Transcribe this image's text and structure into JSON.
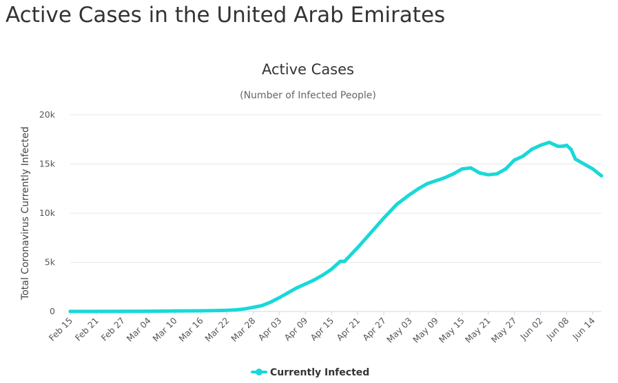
{
  "page_title": "Active Cases in the United Arab Emirates",
  "chart_data": {
    "type": "line",
    "title": "Active Cases",
    "subtitle": "(Number of Infected People)",
    "xlabel": "",
    "ylabel": "Total Coronavirus Currently Infected",
    "ylim": [
      0,
      20000
    ],
    "y_ticks": [
      0,
      5000,
      10000,
      15000,
      20000
    ],
    "y_tick_labels": [
      "0",
      "5k",
      "10k",
      "15k",
      "20k"
    ],
    "x_tick_labels": [
      "Feb 15",
      "Feb 21",
      "Feb 27",
      "Mar 04",
      "Mar 10",
      "Mar 16",
      "Mar 22",
      "Mar 28",
      "Apr 03",
      "Apr 09",
      "Apr 15",
      "Apr 21",
      "Apr 27",
      "May 03",
      "May 09",
      "May 15",
      "May 21",
      "May 27",
      "Jun 02",
      "Jun 08",
      "Jun 14"
    ],
    "grid": true,
    "legend_position": "bottom-center",
    "color": "#19d8d8",
    "series": [
      {
        "name": "Currently Infected",
        "x": [
          "Feb 15",
          "Feb 21",
          "Feb 27",
          "Mar 04",
          "Mar 10",
          "Mar 16",
          "Mar 20",
          "Mar 22",
          "Mar 24",
          "Mar 26",
          "Mar 28",
          "Mar 30",
          "Apr 01",
          "Apr 03",
          "Apr 05",
          "Apr 07",
          "Apr 09",
          "Apr 11",
          "Apr 13",
          "Apr 15",
          "Apr 17",
          "Apr 18",
          "Apr 21",
          "Apr 24",
          "Apr 27",
          "Apr 30",
          "May 03",
          "May 05",
          "May 07",
          "May 09",
          "May 11",
          "May 13",
          "May 15",
          "May 17",
          "May 19",
          "May 21",
          "May 23",
          "May 25",
          "May 27",
          "May 29",
          "May 31",
          "Jun 02",
          "Jun 04",
          "Jun 06",
          "Jun 07",
          "Jun 08",
          "Jun 09",
          "Jun 10",
          "Jun 12",
          "Jun 14",
          "Jun 16"
        ],
        "values": [
          8,
          8,
          15,
          25,
          50,
          70,
          100,
          120,
          170,
          260,
          420,
          600,
          950,
          1400,
          1900,
          2400,
          2800,
          3200,
          3700,
          4300,
          5100,
          5100,
          6500,
          8000,
          9500,
          10900,
          11900,
          12500,
          13000,
          13300,
          13600,
          14000,
          14500,
          14600,
          14100,
          13900,
          14000,
          14500,
          15400,
          15800,
          16500,
          16900,
          17200,
          16800,
          16800,
          16900,
          16500,
          15500,
          15000,
          14500,
          13800
        ]
      }
    ]
  }
}
